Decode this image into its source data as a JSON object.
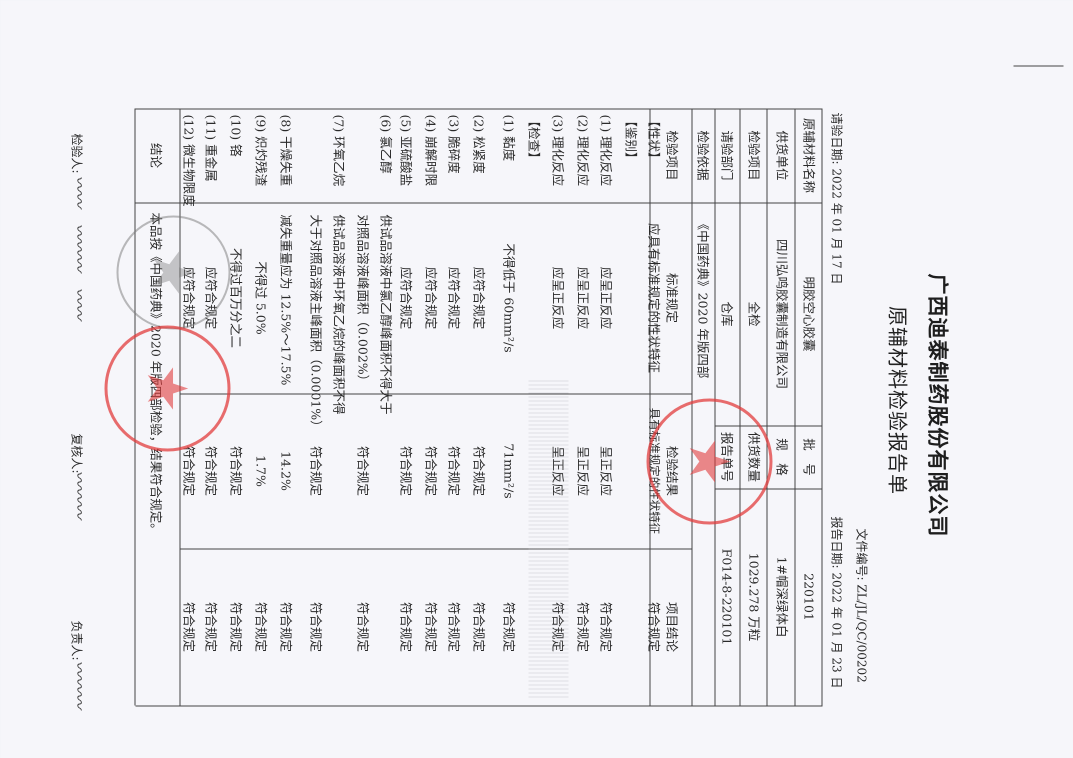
{
  "header": {
    "company": "广西迪泰制药股份有限公司",
    "title": "原辅材料检验报告单",
    "doc_no_label": "文件编号:",
    "doc_no": "ZL/JL/QC/00202",
    "request_date": "请验日期: 2022 年 01 月 17 日",
    "report_date": "报告日期: 2022 年 01 月 23 日"
  },
  "info": {
    "material_label": "原辅材料名称",
    "material": "明胶空心胶囊",
    "batch_label": "批　号",
    "batch": "220101",
    "supplier_label": "供货单位",
    "supplier": "四川弘鸣胶囊制造有限公司",
    "spec_label": "规　格",
    "spec": "1#帽深绿体白",
    "item_label": "检验项目",
    "item": "全检",
    "qty_label": "供货数量",
    "qty": "1029.278 万粒",
    "dept_label": "请验部门",
    "dept": "仓库",
    "report_no_label": "报告单号",
    "report_no": "F014-8-220101",
    "basis_label": "检验依据",
    "basis": "《中国药典》2020 年版四部"
  },
  "columns": [
    "检验项目",
    "标准规定",
    "检验结果",
    "项目结论"
  ],
  "rows": [
    {
      "item": "【性状】",
      "standard": [
        "应具有标准规定的性状特征"
      ],
      "result": "具有标准规定的性状特征",
      "conclusion": "符合规定"
    },
    {
      "item": "【鉴别】",
      "standard": [],
      "result": "",
      "conclusion": ""
    },
    {
      "item": "(1) 理化反应",
      "standard": [
        "应呈正反应"
      ],
      "result": "呈正反应",
      "conclusion": "符合规定"
    },
    {
      "item": "(2) 理化反应",
      "standard": [
        "应呈正反应"
      ],
      "result": "呈正反应",
      "conclusion": "符合规定"
    },
    {
      "item": "(3) 理化反应",
      "standard": [
        "应呈正反应"
      ],
      "result": "呈正反应",
      "conclusion": "符合规定"
    },
    {
      "item": "【检查】",
      "standard": [],
      "result": "",
      "conclusion": ""
    },
    {
      "item": "(1) 黏度",
      "standard": [
        "不得低于 60mm²/s"
      ],
      "result": "71mm²/s",
      "conclusion": "符合规定"
    },
    {
      "item": "(2) 松紧度",
      "standard": [
        "应符合规定"
      ],
      "result": "符合规定",
      "conclusion": "符合规定"
    },
    {
      "item": "(3) 脆碎度",
      "standard": [
        "应符合规定"
      ],
      "result": "符合规定",
      "conclusion": "符合规定"
    },
    {
      "item": "(4) 崩解时限",
      "standard": [
        "应符合规定"
      ],
      "result": "符合规定",
      "conclusion": "符合规定"
    },
    {
      "item": "(5) 亚硫酸盐",
      "standard": [
        "应符合规定"
      ],
      "result": "符合规定",
      "conclusion": "符合规定"
    },
    {
      "item": "(6) 氯乙醇",
      "standard": [
        "供试品溶液中氯乙醇峰面积不得大于",
        "对照品溶液峰面积（0.002%）"
      ],
      "result": "符合规定",
      "conclusion": "符合规定"
    },
    {
      "item": "(7) 环氧乙烷",
      "standard": [
        "供试品溶液中环氧乙烷的峰面积不得",
        "大于对照品溶液主峰面积（0.0001%）"
      ],
      "result": "符合规定",
      "conclusion": "符合规定"
    },
    {
      "item": "(8) 干燥失重",
      "standard": [
        "减失重量应为 12.5%～17.5%"
      ],
      "result": "14.2%",
      "conclusion": "符合规定"
    },
    {
      "item": "(9) 炽灼残渣",
      "standard": [
        "不得过 5.0%"
      ],
      "result": "1.7%",
      "conclusion": "符合规定"
    },
    {
      "item": "(10) 铬",
      "standard": [
        "不得过百万分之二"
      ],
      "result": "符合规定",
      "conclusion": "符合规定"
    },
    {
      "item": "(11) 重金属",
      "standard": [
        "应符合规定"
      ],
      "result": "符合规定",
      "conclusion": "符合规定"
    },
    {
      "item": "(12) 微生物限度",
      "standard": [
        "应符合规定"
      ],
      "result": "符合规定",
      "conclusion": "符合规定"
    }
  ],
  "conclusion_label": "结论",
  "conclusion": "本品按《中国药典》2020 年版四部检验，结果符合规定。",
  "signatures": {
    "inspector_label": "检验人:",
    "reviewer_label": "复核人:",
    "manager_label": "负责人:"
  },
  "stamps": {
    "color": "#e13c3c"
  }
}
